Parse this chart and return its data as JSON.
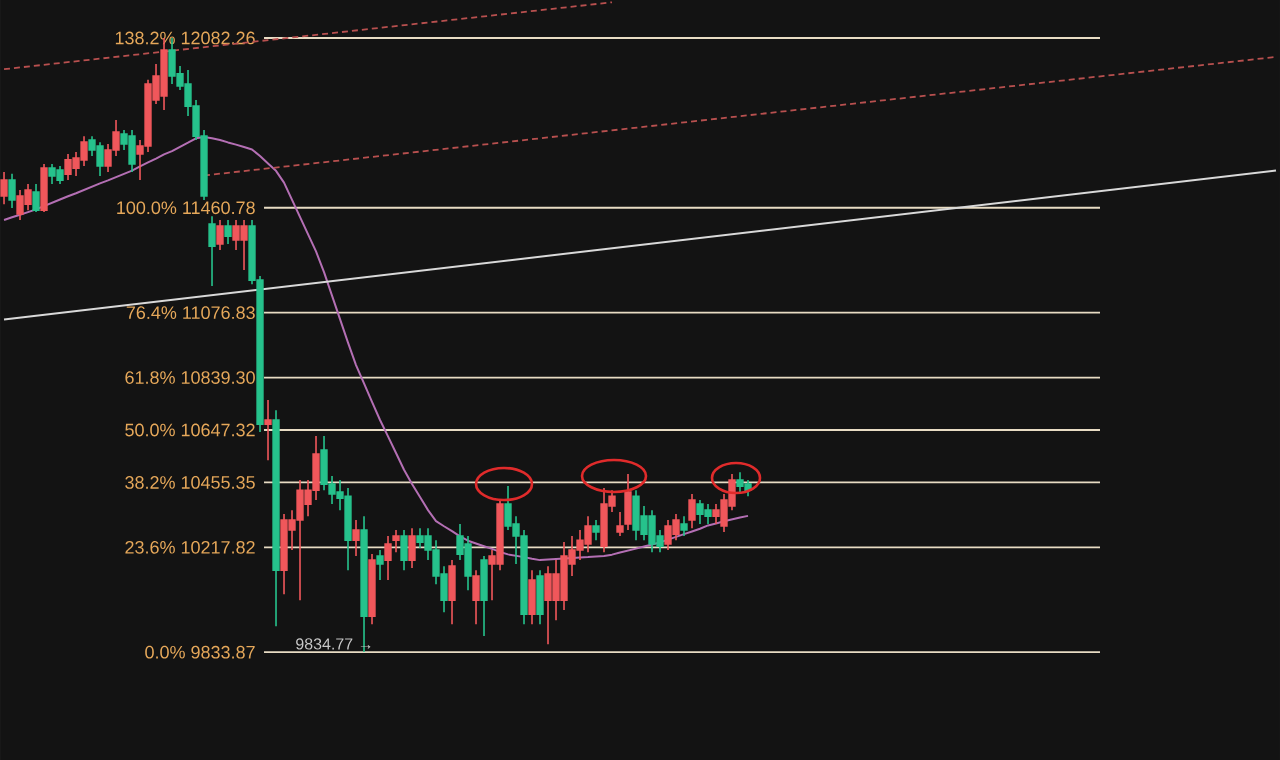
{
  "chart_data": {
    "type": "candlestick",
    "categories": [
      null,
      null,
      null,
      null,
      null,
      null,
      null,
      null,
      null,
      null,
      null,
      null,
      null,
      null,
      null,
      null,
      null,
      null,
      null,
      null,
      null,
      null,
      null,
      null,
      null,
      null,
      null,
      null,
      null,
      null,
      null,
      null,
      null,
      null,
      null,
      null,
      null,
      null,
      null,
      null,
      null,
      null,
      null,
      null,
      null,
      null,
      null,
      null,
      null,
      null,
      null,
      null,
      null,
      null,
      null,
      null,
      null,
      null,
      null,
      null,
      null,
      null,
      null,
      null,
      null,
      null,
      null,
      null,
      null,
      null,
      null,
      null,
      null,
      null,
      null,
      null,
      null,
      null,
      null,
      null,
      null,
      null,
      null,
      null,
      null,
      null,
      null,
      null,
      null,
      null,
      null,
      null,
      null,
      null,
      null,
      null,
      null,
      null,
      null,
      null,
      null,
      null,
      null,
      null,
      null,
      null,
      null,
      null,
      null,
      null,
      null,
      null,
      null,
      null,
      null,
      null,
      null,
      null,
      null,
      null,
      null,
      null,
      null,
      null,
      null,
      null,
      null,
      null,
      null,
      null,
      null,
      null,
      null,
      null,
      null,
      null,
      null,
      null,
      null,
      null,
      null,
      null,
      null,
      null,
      null,
      null,
      null,
      null,
      null,
      null,
      null,
      null,
      null,
      null,
      null,
      null,
      null,
      null,
      null,
      null
    ],
    "ohlc": [
      [
        11504,
        11592,
        11474,
        11562
      ],
      [
        11562,
        11585,
        11460,
        11489
      ],
      [
        11438,
        11526,
        11416,
        11504
      ],
      [
        11474,
        11548,
        11452,
        11526
      ],
      [
        11518,
        11548,
        11445,
        11452
      ],
      [
        11452,
        11621,
        11445,
        11606
      ],
      [
        11606,
        11621,
        11548,
        11577
      ],
      [
        11599,
        11614,
        11548,
        11562
      ],
      [
        11584,
        11658,
        11562,
        11636
      ],
      [
        11606,
        11665,
        11577,
        11643
      ],
      [
        11636,
        11723,
        11614,
        11701
      ],
      [
        11709,
        11723,
        11650,
        11672
      ],
      [
        11687,
        11701,
        11577,
        11614
      ],
      [
        11614,
        11694,
        11592,
        11672
      ],
      [
        11672,
        11782,
        11650,
        11738
      ],
      [
        11731,
        11745,
        11672,
        11694
      ],
      [
        11723,
        11745,
        11592,
        11621
      ],
      [
        11658,
        11709,
        11562,
        11687
      ],
      [
        11687,
        11929,
        11665,
        11914
      ],
      [
        11855,
        11987,
        11841,
        11943
      ],
      [
        11870,
        12082.26,
        11819,
        12038
      ],
      [
        12038,
        12082.26,
        11914,
        11943
      ],
      [
        11951,
        11980,
        11892,
        11907
      ],
      [
        11914,
        11965,
        11797,
        11833
      ],
      [
        11833,
        11855,
        11709,
        11723
      ],
      [
        11723,
        11745,
        11489,
        11504
      ],
      [
        11401,
        11430,
        11174,
        11320
      ],
      [
        11328,
        11416,
        11306,
        11394
      ],
      [
        11394,
        11416,
        11328,
        11357
      ],
      [
        11343,
        11416,
        11306,
        11394
      ],
      [
        11343,
        11416,
        11233,
        11394
      ],
      [
        11394,
        11416,
        11181,
        11196
      ],
      [
        11196,
        11211,
        10640,
        10669
      ],
      [
        10669,
        10757,
        10537,
        10684
      ],
      [
        10684,
        10720,
        9929,
        10134
      ],
      [
        10134,
        10340,
        10046,
        10318
      ],
      [
        10281,
        10354,
        10208,
        10318
      ],
      [
        10318,
        10464,
        10024,
        10427
      ],
      [
        10376,
        10464,
        10332,
        10427
      ],
      [
        10427,
        10625,
        10391,
        10559
      ],
      [
        10574,
        10625,
        10427,
        10449
      ],
      [
        10449,
        10479,
        10376,
        10413
      ],
      [
        10420,
        10464,
        10354,
        10398
      ],
      [
        10405,
        10435,
        10134,
        10244
      ],
      [
        10244,
        10318,
        10186,
        10281
      ],
      [
        10281,
        10332,
        9834.77,
        9966
      ],
      [
        9966,
        10193,
        9936,
        10171
      ],
      [
        10186,
        10208,
        10098,
        10157
      ],
      [
        10171,
        10259,
        10098,
        10230
      ],
      [
        10244,
        10281,
        10200,
        10259
      ],
      [
        10259,
        10281,
        10134,
        10171
      ],
      [
        10171,
        10288,
        10142,
        10259
      ],
      [
        10259,
        10288,
        10215,
        10237
      ],
      [
        10259,
        10288,
        10171,
        10208
      ],
      [
        10208,
        10244,
        10083,
        10113
      ],
      [
        10120,
        10149,
        9980,
        10024
      ],
      [
        10024,
        10171,
        9936,
        10149
      ],
      [
        10259,
        10303,
        10171,
        10193
      ],
      [
        10230,
        10259,
        10061,
        10113
      ],
      [
        10024,
        10134,
        9936,
        10113
      ],
      [
        10171,
        10186,
        9893,
        10024
      ],
      [
        10157,
        10208,
        10024,
        10186
      ],
      [
        10157,
        10391,
        10134,
        10376
      ],
      [
        10376,
        10442,
        10281,
        10296
      ],
      [
        10303,
        10332,
        10157,
        10259
      ],
      [
        10259,
        10281,
        9936,
        9973
      ],
      [
        9973,
        10134,
        9936,
        10098
      ],
      [
        10113,
        10134,
        9936,
        9973
      ],
      [
        10024,
        10149,
        9863,
        10120
      ],
      [
        10024,
        10171,
        9951,
        10120
      ],
      [
        10024,
        10237,
        9988,
        10186
      ],
      [
        10157,
        10259,
        10113,
        10208
      ],
      [
        10208,
        10281,
        10171,
        10244
      ],
      [
        10230,
        10332,
        10200,
        10296
      ],
      [
        10296,
        10318,
        10244,
        10274
      ],
      [
        10222,
        10435,
        10200,
        10376
      ],
      [
        10369,
        10427,
        10347,
        10405
      ],
      [
        10274,
        10347,
        10259,
        10296
      ],
      [
        10303,
        10486,
        10281,
        10420
      ],
      [
        10405,
        10427,
        10244,
        10281
      ],
      [
        10332,
        10369,
        10244,
        10266
      ],
      [
        10332,
        10354,
        10200,
        10230
      ],
      [
        10259,
        10281,
        10200,
        10222
      ],
      [
        10230,
        10318,
        10208,
        10296
      ],
      [
        10266,
        10340,
        10244,
        10318
      ],
      [
        10303,
        10332,
        10259,
        10281
      ],
      [
        10318,
        10413,
        10288,
        10391
      ],
      [
        10376,
        10391,
        10303,
        10339
      ],
      [
        10354,
        10376,
        10303,
        10332
      ],
      [
        10332,
        10376,
        10303,
        10354
      ],
      [
        10296,
        10413,
        10274,
        10391
      ],
      [
        10369,
        10486,
        10354,
        10464
      ],
      [
        10464,
        10493,
        10413,
        10442
      ],
      [
        10449,
        10464,
        10405,
        10427
      ],
      null,
      null,
      null,
      null,
      null,
      null,
      null,
      null,
      null,
      null,
      null,
      null,
      null,
      null,
      null,
      null,
      null,
      null,
      null,
      null,
      null,
      null,
      null,
      null,
      null,
      null,
      null,
      null,
      null,
      null,
      null,
      null,
      null,
      null,
      null,
      null,
      null,
      null,
      null,
      null,
      null,
      null,
      null,
      null,
      null,
      null,
      null,
      null,
      null,
      null,
      null,
      null,
      null,
      null,
      null,
      null,
      null,
      null,
      null,
      null,
      null,
      null,
      null,
      null,
      null,
      null
    ],
    "colors": [
      "#f0575b",
      "#26c28c",
      "#f0575b",
      "#f0575b",
      "#26c28c",
      "#f0575b",
      "#26c28c",
      "#26c28c",
      "#f0575b",
      "#f0575b",
      "#f0575b",
      "#26c28c",
      "#26c28c",
      "#f0575b",
      "#f0575b",
      "#26c28c",
      "#26c28c",
      "#f0575b",
      "#f0575b",
      "#f0575b",
      "#f0575b",
      "#26c28c",
      "#26c28c",
      "#26c28c",
      "#26c28c",
      "#26c28c",
      "#26c28c",
      "#f0575b",
      "#26c28c",
      "#f0575b",
      "#f0575b",
      "#26c28c",
      "#26c28c",
      "#f0575b",
      "#26c28c",
      "#f0575b",
      "#f0575b",
      "#f0575b",
      "#f0575b",
      "#f0575b",
      "#26c28c",
      "#26c28c",
      "#26c28c",
      "#26c28c",
      "#f0575b",
      "#26c28c",
      "#f0575b",
      "#26c28c",
      "#f0575b",
      "#f0575b",
      "#26c28c",
      "#f0575b",
      "#26c28c",
      "#26c28c",
      "#26c28c",
      "#26c28c",
      "#f0575b",
      "#26c28c",
      "#26c28c",
      "#f0575b",
      "#26c28c",
      "#f0575b",
      "#f0575b",
      "#26c28c",
      "#26c28c",
      "#26c28c",
      "#f0575b",
      "#26c28c",
      "#f0575b",
      "#f0575b",
      "#f0575b",
      "#f0575b",
      "#f0575b",
      "#f0575b",
      "#26c28c",
      "#f0575b",
      "#f0575b",
      "#f0575b",
      "#f0575b",
      "#26c28c",
      "#26c28c",
      "#26c28c",
      "#26c28c",
      "#f0575b",
      "#f0575b",
      "#26c28c",
      "#f0575b",
      "#26c28c",
      "#26c28c",
      "#f0575b",
      "#f0575b",
      "#f0575b",
      "#26c28c",
      "#26c28c",
      null,
      null,
      null,
      null,
      null,
      null,
      null,
      null,
      null,
      null,
      null,
      null,
      null,
      null,
      null,
      null,
      null,
      null,
      null,
      null,
      null,
      null,
      null,
      null,
      null,
      null,
      null,
      null,
      null,
      null,
      null,
      null,
      null,
      null,
      null,
      null,
      null,
      null,
      null,
      null,
      null,
      null,
      null,
      null,
      null,
      null,
      null,
      null,
      null,
      null,
      null,
      null,
      null,
      null,
      null,
      null,
      null,
      null,
      null,
      null,
      null,
      null,
      null,
      null,
      null,
      null
    ],
    "series": [
      {
        "type": "line",
        "color": "#b46fb4",
        "line_style": "solid",
        "values": [
          11416,
          11426,
          11435,
          11445,
          11455,
          11467,
          11479,
          11491,
          11503,
          11514,
          11526,
          11538,
          11550,
          11561,
          11573,
          11585,
          11597,
          11612,
          11627,
          11641,
          11656,
          11668,
          11684,
          11699,
          11715,
          11720,
          11715,
          11709,
          11700,
          11692,
          11683,
          11674,
          11650,
          11623,
          11596,
          11553,
          11490,
          11427,
          11364,
          11301,
          11225,
          11139,
          11053,
          10967,
          10885,
          10818,
          10750,
          10684,
          10624,
          10563,
          10502,
          10450,
          10402,
          10354,
          10314,
          10295,
          10277,
          10258,
          10242,
          10232,
          10222,
          10212,
          10201,
          10192,
          10187,
          10182,
          10176,
          10171,
          10173,
          10175,
          10177,
          10179,
          10181,
          10182,
          10184,
          10186,
          10191,
          10199,
          10206,
          10213,
          10221,
          10228,
          10236,
          10246,
          10256,
          10266,
          10276,
          10286,
          10298,
          10305,
          10313,
          10320,
          10327,
          10333,
          null,
          null,
          null,
          null,
          null,
          null,
          null,
          null,
          null,
          null,
          null,
          null,
          null,
          null,
          null,
          null,
          null,
          null,
          null,
          null,
          null,
          null,
          null,
          null,
          null,
          null,
          null,
          null,
          null,
          null,
          null,
          null,
          null,
          null,
          null,
          null,
          null,
          null,
          null,
          null,
          null,
          null,
          null,
          null,
          null,
          null,
          null,
          null,
          null,
          null,
          null,
          null,
          null,
          null,
          null,
          null,
          null,
          null,
          null,
          null,
          null,
          null,
          null,
          null,
          null,
          null
        ]
      },
      {
        "type": "line",
        "color": "#d9d9d9",
        "line_style": "solid",
        "values": [
          11052,
          null,
          null,
          null,
          null,
          null,
          null,
          null,
          null,
          null,
          null,
          null,
          null,
          null,
          null,
          null,
          null,
          null,
          null,
          null,
          null,
          null,
          null,
          null,
          null,
          null,
          null,
          null,
          null,
          null,
          null,
          null,
          null,
          null,
          null,
          null,
          null,
          null,
          null,
          null,
          null,
          null,
          null,
          null,
          null,
          null,
          null,
          null,
          null,
          null,
          null,
          null,
          null,
          null,
          null,
          null,
          null,
          null,
          null,
          null,
          null,
          null,
          null,
          null,
          null,
          null,
          null,
          null,
          null,
          null,
          null,
          null,
          null,
          null,
          null,
          null,
          null,
          null,
          null,
          null,
          null,
          null,
          null,
          null,
          null,
          null,
          null,
          null,
          null,
          null,
          null,
          null,
          null,
          null,
          null,
          null,
          null,
          null,
          null,
          null,
          null,
          null,
          null,
          null,
          null,
          null,
          null,
          null,
          null,
          null,
          null,
          null,
          null,
          null,
          null,
          null,
          null,
          null,
          null,
          null,
          null,
          null,
          null,
          null,
          null,
          null,
          null,
          null,
          null,
          null,
          null,
          null,
          null,
          null,
          null,
          null,
          null,
          null,
          null,
          null,
          null,
          null,
          null,
          null,
          null,
          null,
          null,
          null,
          null,
          null,
          null,
          null,
          null,
          null,
          null,
          null,
          null,
          null,
          null,
          11597
        ]
      },
      {
        "type": "line",
        "color": "#b8504f",
        "line_style": "dashed",
        "values": [
          11968,
          null,
          null,
          null,
          null,
          null,
          null,
          null,
          null,
          null,
          null,
          null,
          null,
          null,
          null,
          null,
          null,
          null,
          null,
          null,
          null,
          null,
          null,
          null,
          null,
          null,
          null,
          null,
          null,
          null,
          null,
          null,
          null,
          null,
          null,
          null,
          null,
          null,
          null,
          null,
          null,
          null,
          null,
          null,
          null,
          null,
          null,
          null,
          null,
          null,
          null,
          null,
          null,
          null,
          null,
          null,
          null,
          null,
          null,
          null,
          null,
          null,
          null,
          null,
          null,
          null,
          null,
          null,
          null,
          null,
          null,
          null,
          null,
          null,
          null,
          null,
          12213,
          null,
          null,
          null,
          null,
          null,
          null,
          null,
          null,
          null,
          null,
          null,
          null,
          null,
          null,
          null,
          null,
          null,
          null,
          null,
          null,
          null,
          null,
          null,
          null,
          null,
          null,
          null,
          null,
          null,
          null,
          null,
          null,
          null,
          null,
          null,
          null,
          null,
          null,
          null,
          null,
          null,
          null,
          null,
          null,
          null,
          null,
          null,
          null,
          null,
          null,
          null,
          null,
          null,
          null,
          null,
          null,
          null,
          null,
          null,
          null,
          null,
          null,
          null,
          null,
          null,
          null,
          null,
          null,
          null,
          null,
          null,
          null,
          null,
          null,
          null,
          null,
          null,
          null,
          null,
          null,
          null,
          null,
          null
        ]
      },
      {
        "type": "line",
        "color": "#b8504f",
        "line_style": "dashed",
        "values": [
          null,
          null,
          null,
          null,
          null,
          null,
          null,
          null,
          null,
          null,
          null,
          null,
          null,
          null,
          null,
          null,
          null,
          null,
          null,
          null,
          null,
          null,
          null,
          null,
          null,
          11579,
          null,
          null,
          null,
          null,
          null,
          null,
          null,
          null,
          null,
          null,
          null,
          null,
          null,
          null,
          null,
          null,
          null,
          null,
          null,
          null,
          null,
          null,
          null,
          null,
          null,
          null,
          null,
          null,
          null,
          null,
          null,
          null,
          null,
          null,
          null,
          null,
          null,
          null,
          null,
          null,
          null,
          null,
          null,
          null,
          null,
          null,
          null,
          null,
          null,
          null,
          null,
          null,
          null,
          null,
          null,
          null,
          null,
          null,
          null,
          null,
          null,
          null,
          null,
          null,
          null,
          null,
          null,
          null,
          null,
          null,
          null,
          null,
          null,
          null,
          null,
          null,
          null,
          null,
          null,
          null,
          null,
          null,
          null,
          null,
          null,
          null,
          null,
          null,
          null,
          null,
          null,
          null,
          null,
          null,
          null,
          null,
          null,
          null,
          null,
          null,
          null,
          null,
          null,
          null,
          null,
          null,
          null,
          null,
          null,
          null,
          null,
          null,
          null,
          null,
          null,
          null,
          null,
          null,
          null,
          null,
          null,
          null,
          null,
          null,
          null,
          null,
          null,
          null,
          null,
          null,
          null,
          null,
          null,
          12013
        ]
      }
    ],
    "ref_lines": [
      {
        "axis": "y",
        "value": 12082.26,
        "label": "138.2% 12082.26",
        "color": "#e8dcc4"
      },
      {
        "axis": "y",
        "value": 11460.78,
        "label": "100.0% 11460.78",
        "color": "#e8dcc4"
      },
      {
        "axis": "y",
        "value": 11076.83,
        "label": "76.4% 11076.83",
        "color": "#e8dcc4"
      },
      {
        "axis": "y",
        "value": 10839.3,
        "label": "61.8% 10839.30",
        "color": "#e8dcc4"
      },
      {
        "axis": "y",
        "value": 10647.32,
        "label": "50.0% 10647.32",
        "color": "#e8dcc4"
      },
      {
        "axis": "y",
        "value": 10455.35,
        "label": "38.2% 10455.35",
        "color": "#e8dcc4"
      },
      {
        "axis": "y",
        "value": 10217.82,
        "label": "23.6% 10217.82",
        "color": "#e8dcc4"
      },
      {
        "axis": "y",
        "value": 9833.87,
        "label": "0.0% 9833.87",
        "color": "#e8dcc4"
      }
    ],
    "annotations": [
      {
        "text": "9834.77 →",
        "y": 9834.77
      }
    ]
  }
}
